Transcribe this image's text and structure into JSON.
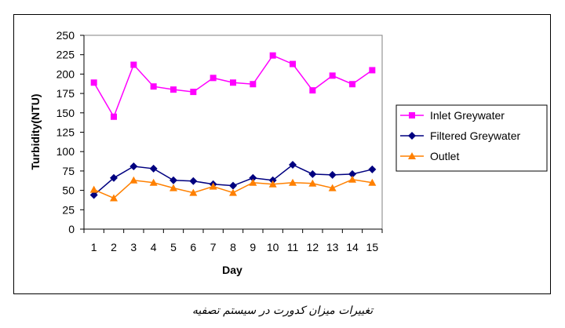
{
  "caption": "تغییرات میزان کدورت در سیستم تصفیه",
  "chart_data": {
    "type": "line",
    "xlabel": "Day",
    "ylabel": "Turbidity(NTU)",
    "x": [
      1,
      2,
      3,
      4,
      5,
      6,
      7,
      8,
      9,
      10,
      11,
      12,
      13,
      14,
      15
    ],
    "ylim": [
      0,
      250
    ],
    "yticks": [
      0,
      25,
      50,
      75,
      100,
      125,
      150,
      175,
      200,
      225,
      250
    ],
    "grid": false,
    "legend_position": "right",
    "series": [
      {
        "name": "Inlet Greywater",
        "color": "#ff00ff",
        "marker": "square",
        "values": [
          189,
          145,
          212,
          184,
          180,
          177,
          195,
          189,
          187,
          224,
          213,
          179,
          198,
          187,
          205
        ]
      },
      {
        "name": "Filtered Greywater",
        "color": "#000080",
        "marker": "diamond",
        "values": [
          44,
          66,
          81,
          78,
          63,
          62,
          58,
          56,
          66,
          63,
          83,
          71,
          70,
          71,
          77
        ]
      },
      {
        "name": "Outlet",
        "color": "#ff8000",
        "marker": "triangle",
        "values": [
          51,
          40,
          63,
          60,
          53,
          47,
          55,
          47,
          60,
          58,
          60,
          59,
          53,
          64,
          60
        ]
      }
    ]
  }
}
